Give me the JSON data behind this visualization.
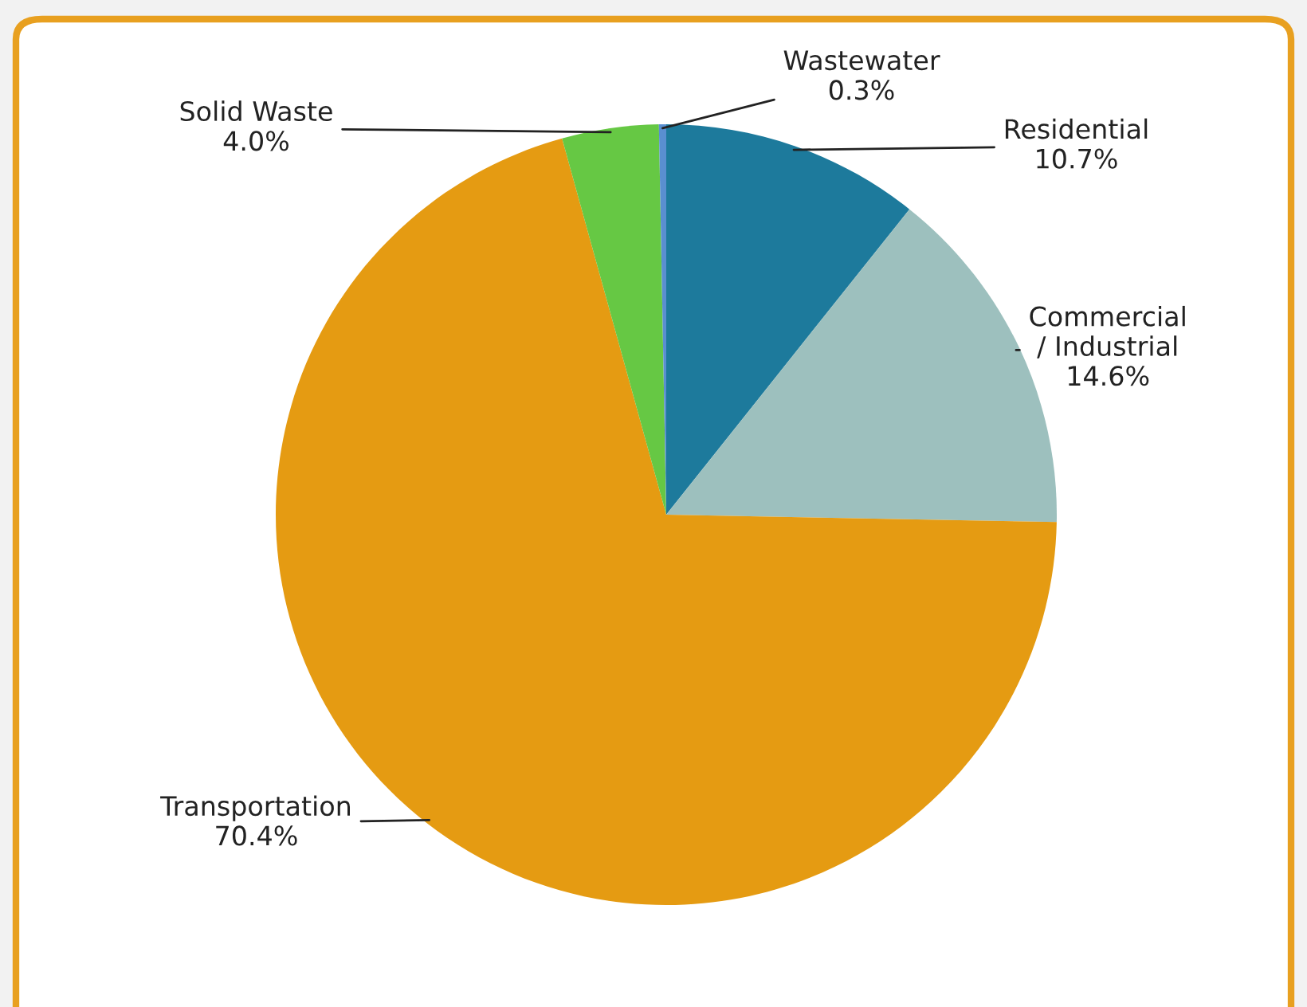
{
  "chart_data": {
    "type": "pie",
    "categories": [
      "Residential",
      "Commercial\n/ Industrial",
      "Transportation",
      "Solid Waste",
      "Wastewater"
    ],
    "values": [
      10.7,
      14.6,
      70.4,
      4.0,
      0.3
    ],
    "colors": [
      "#1d7a9c",
      "#9dc0be",
      "#e59b12",
      "#66c844",
      "#5a8fd0"
    ],
    "value_labels": [
      "10.7%",
      "14.6%",
      "70.4%",
      "4.0%",
      "0.3%"
    ],
    "legend": false
  }
}
